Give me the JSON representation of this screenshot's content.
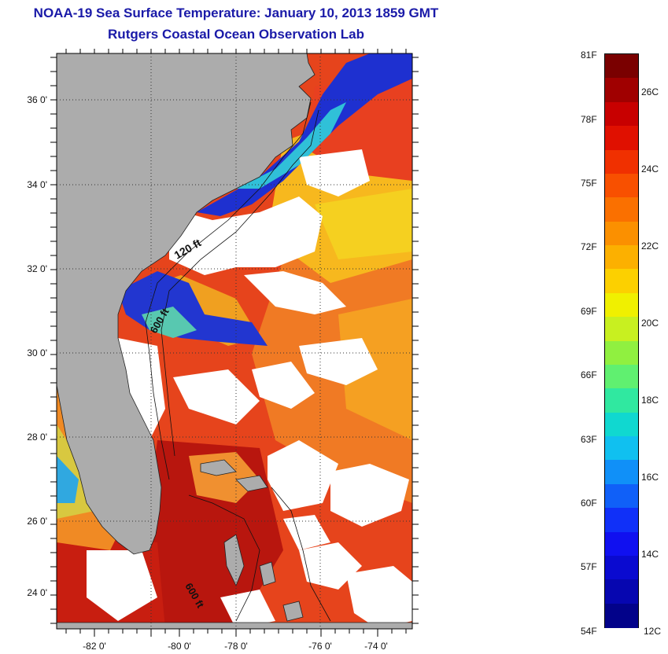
{
  "header": {
    "title": "NOAA-19 Sea Surface Temperature:  January 10, 2013 1859 GMT",
    "subtitle": "Rutgers Coastal Ocean Observation Lab"
  },
  "map": {
    "lon_labels": [
      "-82 0'",
      "-80 0'",
      "-78 0'",
      "-76 0'",
      "-74 0'"
    ],
    "lat_labels": [
      "36 0'",
      "34 0'",
      "32 0'",
      "30 0'",
      "28 0'",
      "26 0'",
      "24 0'"
    ],
    "isobath_labels": [
      "120 ft",
      "600 ft",
      "600 ft"
    ],
    "colors": {
      "land": "#acacac",
      "ocean_warm": "#e0321c",
      "ocean_hot": "#b0140c",
      "ocean_orange": "#f07020",
      "ocean_yellow": "#f5c21e",
      "ocean_cold": "#1e3ad8",
      "ocean_cyan": "#30c8e0",
      "cloud": "#ffffff"
    }
  },
  "colorbar": {
    "fahrenheit_labels": [
      "81F",
      "78F",
      "75F",
      "72F",
      "69F",
      "66F",
      "63F",
      "60F",
      "57F",
      "54F"
    ],
    "celsius_labels": [
      "26C",
      "24C",
      "22C",
      "20C",
      "18C",
      "16C",
      "14C",
      "12C"
    ]
  }
}
